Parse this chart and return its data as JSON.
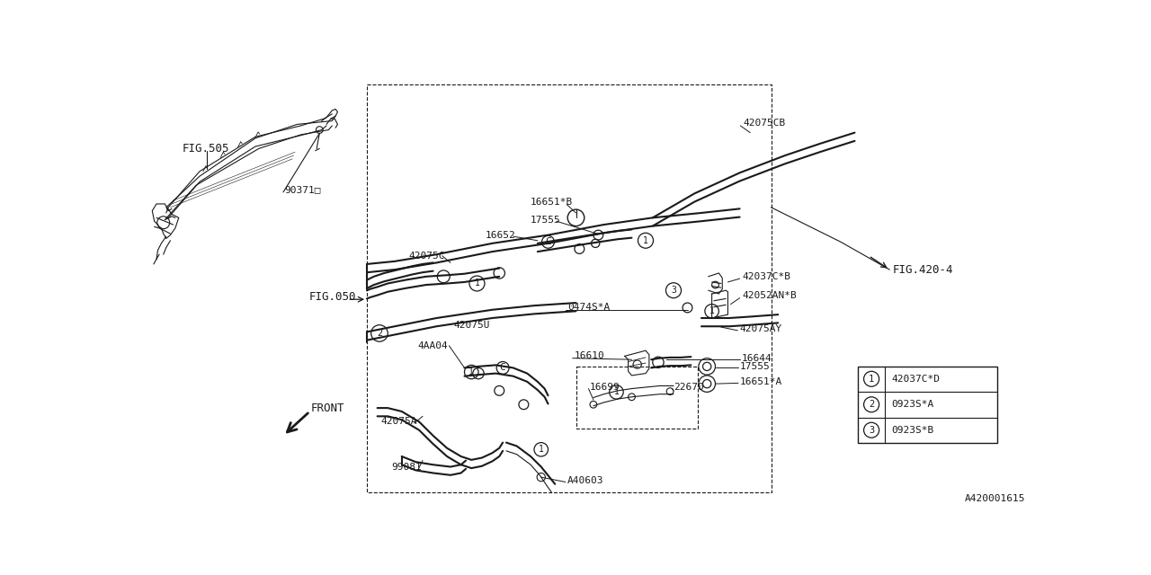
{
  "bg_color": "#ffffff",
  "line_color": "#1a1a1a",
  "fig_ref": "A420001615",
  "legend_items": [
    {
      "num": "1",
      "code": "42037C*D"
    },
    {
      "num": "2",
      "code": "0923S*A"
    },
    {
      "num": "3",
      "code": "0923S*B"
    }
  ]
}
